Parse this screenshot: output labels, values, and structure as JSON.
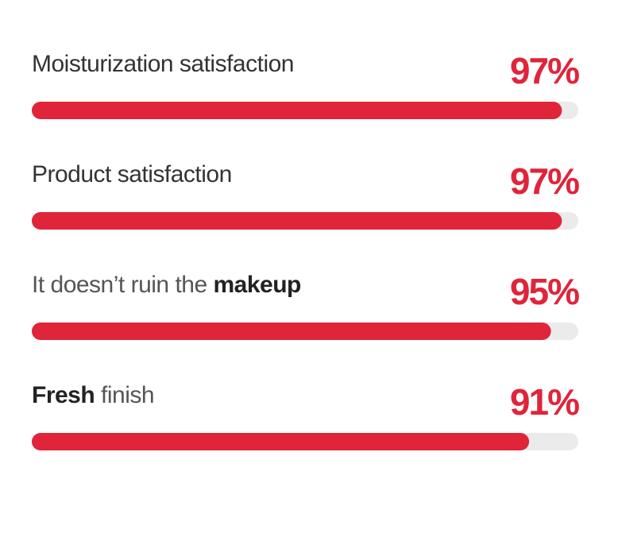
{
  "chart_data": {
    "type": "progress",
    "categories": [
      [
        {
          "text": "Moisturization satisfaction",
          "weight": "regular"
        }
      ],
      [
        {
          "text": "Product satisfaction",
          "weight": "regular"
        }
      ],
      [
        {
          "text": "It doesn’t ruin the ",
          "weight": "light"
        },
        {
          "text": "makeup",
          "weight": "bold"
        }
      ],
      [
        {
          "text": "Fresh",
          "weight": "bold"
        },
        {
          "text": " finish",
          "weight": "light"
        }
      ]
    ],
    "values": [
      97,
      97,
      95,
      91
    ],
    "value_labels": [
      "97%",
      "97%",
      "95%",
      "91%"
    ],
    "xlim": [
      0,
      100
    ],
    "color": "#e0243a",
    "track_color": "#ebebeb"
  }
}
